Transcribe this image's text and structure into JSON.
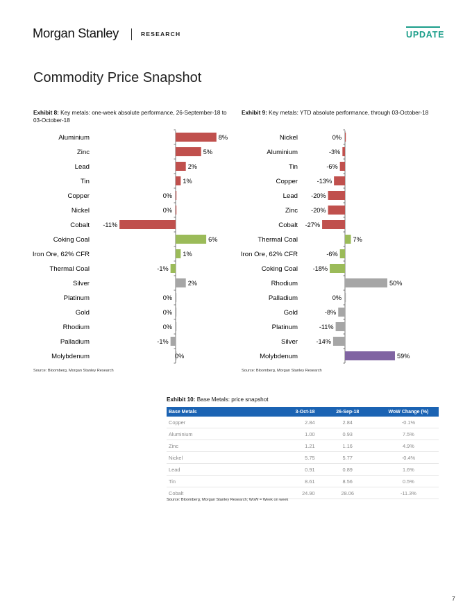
{
  "header": {
    "brand": "Morgan Stanley",
    "section": "RESEARCH",
    "badge": "UPDATE",
    "badge_color": "#1b9e8a"
  },
  "page_title": "Commodity Price Snapshot",
  "exhibit8": {
    "label": "Exhibit 8:",
    "title": "Key metals: one-week absolute performance, 26-September-18 to 03-October-18",
    "source": "Source: Bloomberg, Morgan Stanley Research"
  },
  "exhibit9": {
    "label": "Exhibit 9:",
    "title": "Key metals: YTD absolute performance, through 03-October-18",
    "source": "Source: Bloomberg, Morgan Stanley Research"
  },
  "exhibit10": {
    "label": "Exhibit 10:",
    "title": "Base Metals: price snapshot",
    "source": "Source: Bloomberg, Morgan Stanley Research; WoW = Week on week",
    "header_color": "#1b63b3",
    "columns": [
      "Base Metals",
      "3-Oct-18",
      "26-Sep-18",
      "WoW Change (%)"
    ],
    "rows": [
      [
        "Copper",
        "2.84",
        "2.84",
        "-0.1%"
      ],
      [
        "Aluminium",
        "1.00",
        "0.93",
        "7.5%"
      ],
      [
        "Zinc",
        "1.21",
        "1.16",
        "4.9%"
      ],
      [
        "Nickel",
        "5.75",
        "5.77",
        "-0.4%"
      ],
      [
        "Lead",
        "0.91",
        "0.89",
        "1.6%"
      ],
      [
        "Tin",
        "8.61",
        "8.56",
        "0.5%"
      ],
      [
        "Cobalt",
        "24.90",
        "28.06",
        "-11.3%"
      ]
    ]
  },
  "page_number": "7",
  "chart_data": [
    {
      "type": "bar",
      "orientation": "horizontal",
      "categories": [
        "Aluminium",
        "Zinc",
        "Lead",
        "Tin",
        "Copper",
        "Nickel",
        "Cobalt",
        "Coking Coal",
        "Iron Ore, 62% CFR",
        "Thermal Coal",
        "Silver",
        "Platinum",
        "Gold",
        "Rhodium",
        "Palladium",
        "Molybdenum"
      ],
      "values": [
        8,
        5,
        2,
        1,
        0,
        0,
        -11,
        6,
        1,
        -1,
        2,
        0,
        0,
        0,
        -1,
        0
      ],
      "value_labels": [
        "8%",
        "5%",
        "2%",
        "1%",
        "0%",
        "0%",
        "-11%",
        "6%",
        "1%",
        "-1%",
        "2%",
        "0%",
        "0%",
        "0%",
        "-1%",
        "0%"
      ],
      "colors": [
        "#c0504d",
        "#c0504d",
        "#c0504d",
        "#c0504d",
        "#c0504d",
        "#c0504d",
        "#c0504d",
        "#9bbb59",
        "#9bbb59",
        "#9bbb59",
        "#a6a6a6",
        "#a6a6a6",
        "#a6a6a6",
        "#a6a6a6",
        "#a6a6a6",
        "#a6a6a6"
      ],
      "xlim": [
        -11,
        8
      ],
      "grid": false,
      "legend": false
    },
    {
      "type": "bar",
      "orientation": "horizontal",
      "categories": [
        "Nickel",
        "Aluminium",
        "Tin",
        "Copper",
        "Lead",
        "Zinc",
        "Cobalt",
        "Thermal Coal",
        "Iron Ore, 62% CFR",
        "Coking Coal",
        "Rhodium",
        "Palladium",
        "Gold",
        "Platinum",
        "Silver",
        "Molybdenum"
      ],
      "values": [
        0,
        -3,
        -6,
        -13,
        -20,
        -20,
        -27,
        7,
        -6,
        -18,
        50,
        0,
        -8,
        -11,
        -14,
        59
      ],
      "value_labels": [
        "0%",
        "-3%",
        "-6%",
        "-13%",
        "-20%",
        "-20%",
        "-27%",
        "7%",
        "-6%",
        "-18%",
        "50%",
        "0%",
        "-8%",
        "-11%",
        "-14%",
        "59%"
      ],
      "colors": [
        "#c0504d",
        "#c0504d",
        "#c0504d",
        "#c0504d",
        "#c0504d",
        "#c0504d",
        "#c0504d",
        "#9bbb59",
        "#9bbb59",
        "#9bbb59",
        "#a6a6a6",
        "#a6a6a6",
        "#a6a6a6",
        "#a6a6a6",
        "#a6a6a6",
        "#8064a2"
      ],
      "xlim": [
        -30,
        59
      ],
      "grid": false,
      "legend": false
    }
  ]
}
